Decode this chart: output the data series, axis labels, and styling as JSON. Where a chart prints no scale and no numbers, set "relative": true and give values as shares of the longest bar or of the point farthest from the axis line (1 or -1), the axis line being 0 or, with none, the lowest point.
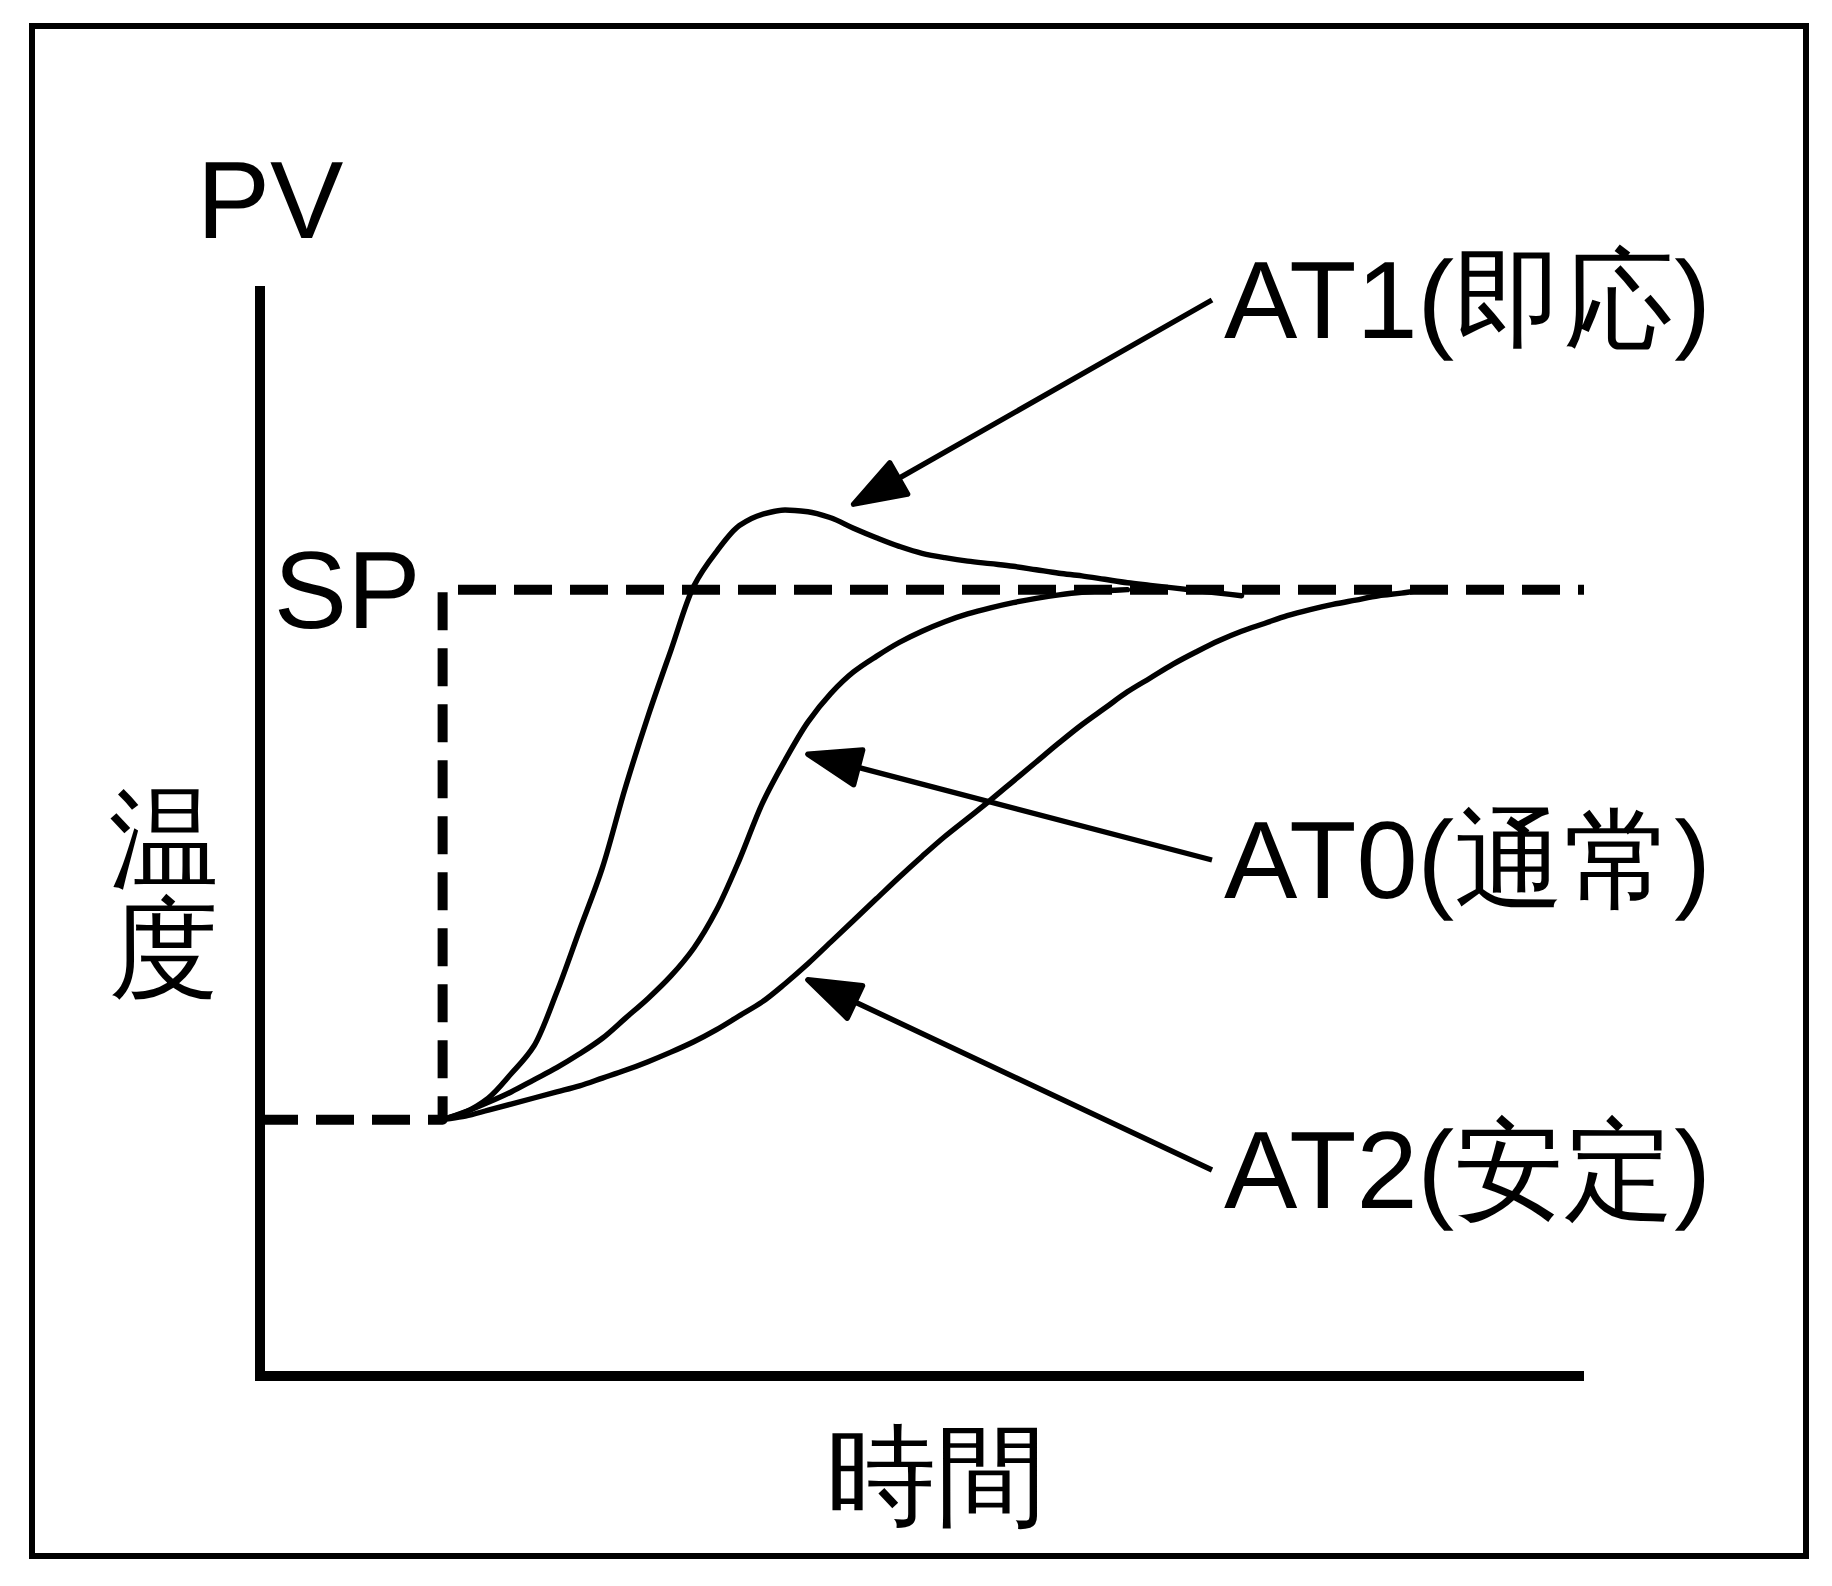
{
  "chart_data": {
    "type": "line",
    "relative": true,
    "line_style": "solid",
    "ylabel": "温度",
    "xlabel": "時間",
    "annotations": [
      "PV"
    ],
    "categories": [
      null,
      null,
      null,
      null,
      null,
      null,
      null,
      null,
      null,
      null,
      null,
      null,
      null,
      null,
      null,
      null,
      null,
      null,
      null,
      null,
      null,
      null,
      null,
      null,
      null,
      null,
      null,
      null,
      null,
      null,
      null,
      null,
      null,
      null,
      null,
      null,
      null,
      null,
      null,
      null,
      null,
      null,
      null,
      null,
      null,
      null,
      null,
      null,
      null,
      null,
      null,
      null,
      null,
      null,
      null,
      null,
      null,
      null,
      null
    ],
    "series": [
      {
        "name": "SP",
        "type": "step",
        "line_style": "dashed",
        "color": "#000000",
        "values": [
          0.296,
          0.296,
          0.296,
          0.296,
          0.296,
          0.296,
          0.296,
          0.296,
          0.908,
          0.908,
          0.908,
          0.908,
          0.908,
          0.908,
          0.908,
          0.908,
          0.908,
          0.908,
          0.908,
          0.908,
          0.908,
          0.908,
          0.908,
          0.908,
          0.908,
          0.908,
          0.908,
          0.908,
          0.908,
          0.908,
          0.908,
          0.908,
          0.908,
          0.908,
          0.908,
          0.908,
          0.908,
          0.908,
          0.908,
          0.908,
          0.908,
          0.908,
          0.908,
          0.908,
          0.908,
          0.908,
          0.908,
          0.908,
          0.908,
          0.908,
          0.908,
          0.908,
          0.908,
          0.908,
          0.908,
          0.908,
          0.908,
          0.908,
          0.908
        ]
      },
      {
        "name": "AT1(即応)",
        "color": "#000000",
        "values": [
          null,
          null,
          null,
          null,
          null,
          null,
          null,
          null,
          0.296,
          0.305,
          0.321,
          0.349,
          0.381,
          0.443,
          0.515,
          0.587,
          0.679,
          0.762,
          0.838,
          0.912,
          0.952,
          0.982,
          0.995,
          1.0,
          0.998,
          0.991,
          0.979,
          0.968,
          0.958,
          0.95,
          0.945,
          0.941,
          0.938,
          0.935,
          0.931,
          0.927,
          0.924,
          0.92,
          0.916,
          0.913,
          0.91,
          0.907,
          0.904,
          0.901,
          null,
          null,
          null,
          null,
          null,
          null,
          null,
          null,
          null,
          null,
          null,
          null,
          null,
          null,
          null
        ]
      },
      {
        "name": "AT0(通常)",
        "color": "#000000",
        "values": [
          null,
          null,
          null,
          null,
          null,
          null,
          null,
          null,
          0.296,
          0.305,
          0.316,
          0.328,
          0.342,
          0.356,
          0.372,
          0.39,
          0.413,
          0.436,
          0.462,
          0.494,
          0.538,
          0.596,
          0.661,
          0.711,
          0.755,
          0.788,
          0.813,
          0.831,
          0.847,
          0.86,
          0.871,
          0.88,
          0.887,
          0.893,
          0.898,
          0.902,
          0.905,
          0.907,
          0.908,
          null,
          null,
          null,
          null,
          null,
          null,
          null,
          null,
          null,
          null,
          null,
          null,
          null,
          null,
          null,
          null,
          null,
          null,
          null,
          null
        ]
      },
      {
        "name": "AT2(安定)",
        "color": "#000000",
        "values": [
          null,
          null,
          null,
          null,
          null,
          null,
          null,
          null,
          0.296,
          0.3,
          0.307,
          0.314,
          0.321,
          0.328,
          0.335,
          0.344,
          0.353,
          0.363,
          0.374,
          0.386,
          0.4,
          0.416,
          0.432,
          0.453,
          0.476,
          0.501,
          0.526,
          0.551,
          0.576,
          0.6,
          0.623,
          0.644,
          0.665,
          0.687,
          0.709,
          0.731,
          0.752,
          0.771,
          0.79,
          0.806,
          0.822,
          0.836,
          0.849,
          0.86,
          0.869,
          0.878,
          0.885,
          0.891,
          0.896,
          0.901,
          0.904,
          0.908,
          null,
          null,
          null,
          null,
          null,
          null,
          null
        ]
      }
    ]
  }
}
